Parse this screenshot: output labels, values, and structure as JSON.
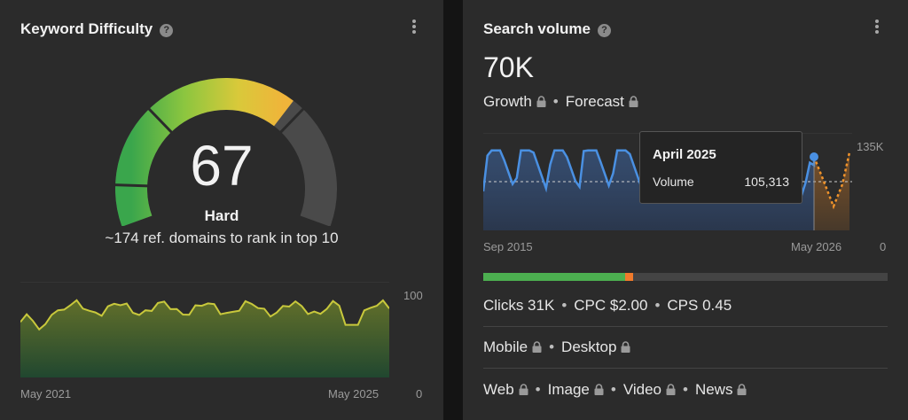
{
  "keyword_difficulty": {
    "title": "Keyword Difficulty",
    "score": "67",
    "score_value": 67,
    "level": "Hard",
    "description": "~174 ref. domains to rank in top 10",
    "chart": {
      "x_start": "May 2021",
      "x_end": "May 2025",
      "y_max_label": "100",
      "y_min_label": "0"
    }
  },
  "search_volume": {
    "title": "Search volume",
    "value": "70K",
    "growth_label": "Growth",
    "forecast_label": "Forecast",
    "chart": {
      "x_start": "Sep 2015",
      "x_end": "May 2026",
      "y_max_label": "135K",
      "y_min_label": "0"
    },
    "tooltip": {
      "month": "April 2025",
      "metric_label": "Volume",
      "metric_value": "105,313"
    },
    "clicks_bar": {
      "organic_fraction": 0.35,
      "paid_fraction": 0.02
    },
    "clicks": "Clicks 31K",
    "cpc": "CPC $2.00",
    "cps": "CPS 0.45",
    "devices": [
      "Mobile",
      "Desktop"
    ],
    "search_types": [
      "Web",
      "Image",
      "Video",
      "News"
    ]
  },
  "colors": {
    "panel_bg": "#2b2b2b",
    "volume_line": "#4a90e2",
    "forecast_line": "#f0932b",
    "kd_line": "#c8c83c",
    "clicks_organic": "#4caf50",
    "clicks_paid": "#f07a2b"
  },
  "icons": {
    "help": "question-circle-icon",
    "menu": "kebab-menu-icon",
    "lock": "lock-icon"
  }
}
